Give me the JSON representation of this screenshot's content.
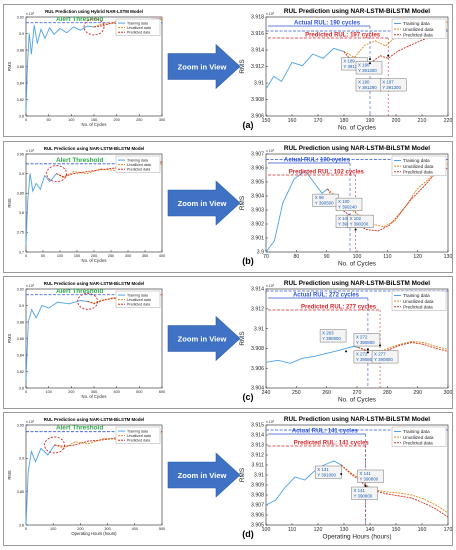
{
  "colors": {
    "training": "#4da3e6",
    "unutilized": "#e08a1e",
    "predicted": "#cc2f1e",
    "threshold": "#2f55d6",
    "alert_text": "#2da84a",
    "actual_rul_text": "#2f55d6",
    "predicted_rul_text": "#d8262a",
    "arrow": "#3f72c4",
    "circle": "#d62020",
    "tip_border": "#555555"
  },
  "zoom_label": "Zoom in View",
  "legend": [
    "Training data",
    "Unutilized data",
    "Predicted data"
  ],
  "panels": [
    {
      "label": "(a)",
      "left": {
        "title": "RUL Prediction using Hybrid NAR-LSTM Model",
        "xlabel": "No. of Cycles",
        "ylabel": "RMS",
        "exponent": "x 10³",
        "xticks": [
          "0",
          "50",
          "100",
          "150",
          "200",
          "250",
          "300"
        ],
        "yticks": [
          "3.8",
          "3.82",
          "3.84",
          "3.86",
          "3.88",
          "3.9",
          "3.92"
        ],
        "alert": "Alert Threshold"
      },
      "right": {
        "title": "RUL Prediction using NAR-LSTM-BiLSTM Model",
        "xlabel": "No. of Cycles",
        "ylabel": "RMS",
        "exponent": "x 10³",
        "xticks": [
          "150",
          "160",
          "170",
          "180",
          "190",
          "200",
          "210",
          "220"
        ],
        "yticks": [
          "3.906",
          "3.908",
          "3.91",
          "3.912",
          "3.914",
          "3.916",
          "3.918"
        ],
        "actual": "Actual RUL: 190 cycles",
        "predicted": "Predicted RUL: 197 cycles",
        "tips": [
          {
            "x": "X 189",
            "y": "Y 391300"
          },
          {
            "x": "X 190",
            "y": "Y 391290"
          },
          {
            "x": "X 190",
            "y": "Y 391300"
          },
          {
            "x": "X 197",
            "y": "Y 391300"
          }
        ]
      }
    },
    {
      "label": "(b)",
      "left": {
        "title": "RUL Prediction using NAR-LSTM-BiLSTM Model",
        "xlabel": "No. of Cycles",
        "ylabel": "RMS",
        "exponent": "x 10³",
        "xticks": [
          "0",
          "50",
          "100",
          "150",
          "200",
          "250",
          "300",
          "350",
          "400"
        ],
        "yticks": [
          "3.7",
          "3.75",
          "3.8",
          "3.85",
          "3.9",
          "3.95"
        ],
        "alert": "Alert Threshold"
      },
      "right": {
        "title": "RUL Prediction using NAR-LSTM-BiLSTM Model",
        "xlabel": "No. of Cycles",
        "ylabel": "RMS",
        "exponent": "x 10³",
        "xticks": [
          "70",
          "80",
          "90",
          "100",
          "110",
          "120",
          "130"
        ],
        "yticks": [
          "3.9",
          "3.901",
          "3.902",
          "3.903",
          "3.904",
          "3.905",
          "3.906",
          "3.907"
        ],
        "actual": "Actual RUL: 100 cycles",
        "predicted": "Predicted RUL: 102 cycles",
        "tips": [
          {
            "x": "X 96",
            "y": "Y 390500"
          },
          {
            "x": "X 100",
            "y": "Y 390500"
          },
          {
            "x": "X 100",
            "y": "Y 390240"
          },
          {
            "x": "X 102",
            "y": "Y 390200"
          }
        ]
      }
    },
    {
      "label": "(c)",
      "left": {
        "title": "RUL Prediction using NAR-LSTM-BiLSTM Model",
        "xlabel": "No. of Cycles",
        "ylabel": "RMS",
        "exponent": "x 10³",
        "xticks": [
          "0",
          "100",
          "200",
          "300",
          "400",
          "500",
          "600"
        ],
        "yticks": [
          "3.8",
          "3.82",
          "3.84",
          "3.86",
          "3.88",
          "3.9",
          "3.92"
        ],
        "alert": "Alert Threshold"
      },
      "right": {
        "title": "RUL Prediction using NAR-LSTM-BiLSTM Model",
        "xlabel": "No. of Cycles",
        "ylabel": "RMS",
        "exponent": "x 10³",
        "xticks": [
          "240",
          "250",
          "260",
          "270",
          "280",
          "290",
          "300"
        ],
        "yticks": [
          "3.904",
          "3.906",
          "3.908",
          "3.91",
          "3.912",
          "3.914"
        ],
        "actual": "Actual RUL: 272 cycles",
        "predicted": "Predicted RUL: 277 cycles",
        "tips": [
          {
            "x": "X 263",
            "y": "Y 390800"
          },
          {
            "x": "X 272",
            "y": "Y 390800"
          },
          {
            "x": "X 272",
            "y": "Y 390800"
          },
          {
            "x": "X 277",
            "y": "Y 390800"
          }
        ]
      }
    },
    {
      "label": "(d)",
      "left": {
        "title": "RUL Prediction using NAR-LSTM-BiLSTM Model",
        "xlabel": "Operating Hours (hours)",
        "ylabel": "RMS",
        "exponent": "x 10³",
        "xticks": [
          "0",
          "100",
          "200",
          "300",
          "400",
          "500"
        ],
        "yticks": [
          "3.8",
          "3.85",
          "3.9",
          "3.95"
        ],
        "alert": "Alert Threshold"
      },
      "right": {
        "title": "RUL Prediction using NAR-LSTM-BiLSTM Model",
        "xlabel": "Operating Hours (hours)",
        "ylabel": "RMS",
        "exponent": "x 10³",
        "xticks": [
          "100",
          "110",
          "120",
          "130",
          "140",
          "150",
          "160",
          "170"
        ],
        "yticks": [
          "3.905",
          "3.906",
          "3.907",
          "3.908",
          "3.909",
          "3.91",
          "3.911",
          "3.912",
          "3.913",
          "3.914",
          "3.915"
        ],
        "actual": "Actual RUL: 141 cycles",
        "predicted": "Predicted RUL: 141 cycles",
        "tips": [
          {
            "x": "X 131",
            "y": "Y 391000"
          },
          {
            "x": "X 141",
            "y": "Y 390800"
          },
          {
            "x": "X 141",
            "y": "Y 390800"
          }
        ]
      }
    }
  ],
  "chart_data": [
    {
      "type": "line",
      "title": "RUL Prediction using Hybrid NAR-LSTM Model",
      "xlabel": "No. of Cycles",
      "ylabel": "RMS",
      "xlim": [
        0,
        300
      ],
      "ylim": [
        3.8,
        3.92
      ],
      "threshold": 3.913,
      "series": [
        {
          "name": "Training data",
          "x": [
            0,
            3,
            7,
            12,
            18,
            25,
            33,
            42,
            52,
            62,
            75,
            90,
            105,
            120,
            135,
            150
          ],
          "y": [
            3.805,
            3.86,
            3.9,
            3.875,
            3.91,
            3.888,
            3.905,
            3.894,
            3.907,
            3.899,
            3.906,
            3.901,
            3.908,
            3.904,
            3.909,
            3.908
          ]
        },
        {
          "name": "Unutilized data",
          "x": [
            150,
            165,
            180,
            190,
            200,
            215,
            230,
            250,
            270,
            300
          ],
          "y": [
            3.908,
            3.911,
            3.913,
            3.912,
            3.915,
            3.913,
            3.916,
            3.914,
            3.917,
            3.917
          ]
        },
        {
          "name": "Predicted data",
          "x": [
            150,
            165,
            180,
            190,
            200,
            215,
            230,
            250,
            270,
            300
          ],
          "y": [
            3.908,
            3.909,
            3.911,
            3.913,
            3.912,
            3.915,
            3.914,
            3.916,
            3.917,
            3.918
          ]
        }
      ]
    },
    {
      "type": "line",
      "title": "RUL Prediction using NAR-LSTM-BiLSTM Model",
      "xlabel": "No. of Cycles",
      "ylabel": "RMS",
      "xlim": [
        150,
        220
      ],
      "ylim": [
        3.906,
        3.918
      ],
      "threshold": 3.9163,
      "series": [
        {
          "name": "Training data",
          "x": [
            150,
            153,
            156,
            160,
            164,
            168,
            172,
            176,
            180
          ],
          "y": [
            3.9093,
            3.9108,
            3.9102,
            3.9125,
            3.9121,
            3.9135,
            3.913,
            3.9142,
            3.9138
          ]
        },
        {
          "name": "Unutilized data",
          "x": [
            180,
            184,
            188,
            192,
            196,
            200,
            205,
            210,
            215,
            220
          ],
          "y": [
            3.9138,
            3.9131,
            3.9146,
            3.9151,
            3.9145,
            3.9156,
            3.9162,
            3.9168,
            3.9172,
            3.9174
          ]
        },
        {
          "name": "Predicted data",
          "x": [
            180,
            184,
            188,
            190,
            194,
            197,
            201,
            205,
            210,
            215,
            220
          ],
          "y": [
            3.9138,
            3.9122,
            3.9129,
            3.9124,
            3.9133,
            3.913,
            3.9139,
            3.9145,
            3.9152,
            3.9158,
            3.9166
          ]
        }
      ]
    },
    {
      "type": "line",
      "title": "RUL Prediction using NAR-LSTM-BiLSTM Model",
      "xlabel": "No. of Cycles",
      "ylabel": "RMS",
      "xlim": [
        0,
        400
      ],
      "ylim": [
        3.7,
        3.95
      ],
      "threshold": 3.925,
      "series": [
        {
          "name": "Training data",
          "x": [
            0,
            5,
            12,
            20,
            30,
            42,
            55,
            70,
            90
          ],
          "y": [
            3.72,
            3.83,
            3.9,
            3.855,
            3.875,
            3.86,
            3.895,
            3.88,
            3.9
          ]
        },
        {
          "name": "Unutilized data",
          "x": [
            90,
            110,
            140,
            180,
            220,
            260,
            300,
            350,
            400
          ],
          "y": [
            3.9,
            3.89,
            3.905,
            3.9,
            3.912,
            3.908,
            3.918,
            3.915,
            3.925
          ]
        },
        {
          "name": "Predicted data",
          "x": [
            90,
            110,
            140,
            180,
            220,
            260,
            300,
            350,
            400
          ],
          "y": [
            3.9,
            3.892,
            3.9,
            3.905,
            3.91,
            3.914,
            3.916,
            3.92,
            3.93
          ]
        }
      ]
    },
    {
      "type": "line",
      "title": "RUL Prediction using NAR-LSTM-BiLSTM Model",
      "xlabel": "No. of Cycles",
      "ylabel": "RMS",
      "xlim": [
        70,
        135
      ],
      "ylim": [
        3.9,
        3.907
      ],
      "threshold": 3.9066,
      "series": [
        {
          "name": "Training data",
          "x": [
            70,
            73,
            76,
            80,
            84,
            87,
            90,
            92
          ],
          "y": [
            3.9,
            3.9008,
            3.9035,
            3.9052,
            3.9058,
            3.905,
            3.9042,
            3.9045
          ]
        },
        {
          "name": "Unutilized data",
          "x": [
            92,
            96,
            100,
            104,
            108,
            112,
            116,
            120,
            124,
            128,
            132,
            135
          ],
          "y": [
            3.9045,
            3.9038,
            3.9031,
            3.9025,
            3.902,
            3.9018,
            3.9022,
            3.9033,
            3.9045,
            3.9052,
            3.906,
            3.9063
          ]
        },
        {
          "name": "Predicted data",
          "x": [
            92,
            96,
            100,
            102,
            106,
            110,
            114,
            118,
            122,
            126,
            130,
            135
          ],
          "y": [
            3.9045,
            3.9032,
            3.9026,
            3.902,
            3.9016,
            3.9015,
            3.9019,
            3.9028,
            3.9038,
            3.9046,
            3.9055,
            3.906
          ]
        }
      ]
    },
    {
      "type": "line",
      "title": "RUL Prediction using NAR-LSTM-BiLSTM Model",
      "xlabel": "No. of Cycles",
      "ylabel": "RMS",
      "xlim": [
        0,
        600
      ],
      "ylim": [
        3.8,
        3.92
      ],
      "threshold": 3.913,
      "series": [
        {
          "name": "Training data",
          "x": [
            0,
            10,
            25,
            45,
            70,
            100,
            140,
            190,
            240,
            272
          ],
          "y": [
            3.81,
            3.88,
            3.895,
            3.885,
            3.9,
            3.897,
            3.904,
            3.902,
            3.906,
            3.905
          ]
        },
        {
          "name": "Unutilized data",
          "x": [
            272,
            300,
            340,
            380,
            430,
            480,
            530,
            600
          ],
          "y": [
            3.905,
            3.903,
            3.907,
            3.908,
            3.909,
            3.91,
            3.912,
            3.913
          ]
        },
        {
          "name": "Predicted data",
          "x": [
            272,
            300,
            340,
            380,
            430,
            480,
            530,
            600
          ],
          "y": [
            3.905,
            3.902,
            3.906,
            3.909,
            3.91,
            3.911,
            3.912,
            3.913
          ]
        }
      ]
    },
    {
      "type": "line",
      "title": "RUL Prediction using NAR-LSTM-BiLSTM Model",
      "xlabel": "No. of Cycles",
      "ylabel": "RMS",
      "xlim": [
        230,
        305
      ],
      "ylim": [
        3.904,
        3.914
      ],
      "threshold": 3.9138,
      "series": [
        {
          "name": "Training data",
          "x": [
            230,
            235,
            240,
            245,
            250,
            255,
            260,
            263,
            266,
            268
          ],
          "y": [
            3.9066,
            3.9068,
            3.9065,
            3.907,
            3.9072,
            3.9075,
            3.9078,
            3.908,
            3.9082,
            3.9081
          ]
        },
        {
          "name": "Unutilized data",
          "x": [
            268,
            272,
            276,
            280,
            285,
            290,
            295,
            300,
            305
          ],
          "y": [
            3.9081,
            3.9078,
            3.9076,
            3.908,
            3.9084,
            3.9087,
            3.9086,
            3.9082,
            3.9079
          ]
        },
        {
          "name": "Predicted data",
          "x": [
            268,
            272,
            277,
            281,
            285,
            290,
            295,
            300,
            305
          ],
          "y": [
            3.9081,
            3.9077,
            3.9076,
            3.9079,
            3.9083,
            3.9086,
            3.9084,
            3.908,
            3.9077
          ]
        }
      ]
    },
    {
      "type": "line",
      "title": "RUL Prediction using NAR-LSTM-BiLSTM Model",
      "xlabel": "Operating Hours (hours)",
      "ylabel": "RMS",
      "xlim": [
        0,
        500
      ],
      "ylim": [
        3.8,
        3.95
      ],
      "threshold": 3.94,
      "series": [
        {
          "name": "Training data",
          "x": [
            0,
            8,
            20,
            35,
            55,
            80,
            105
          ],
          "y": [
            3.8,
            3.88,
            3.91,
            3.895,
            3.915,
            3.905,
            3.92
          ]
        },
        {
          "name": "Unutilized data",
          "x": [
            105,
            140,
            180,
            230,
            290,
            350,
            420,
            500
          ],
          "y": [
            3.92,
            3.915,
            3.925,
            3.922,
            3.93,
            3.928,
            3.935,
            3.938
          ]
        },
        {
          "name": "Predicted data",
          "x": [
            105,
            140,
            180,
            230,
            290,
            350,
            420,
            500
          ],
          "y": [
            3.92,
            3.918,
            3.92,
            3.926,
            3.928,
            3.932,
            3.934,
            3.94
          ]
        }
      ]
    },
    {
      "type": "line",
      "title": "RUL Prediction using NAR-LSTM-BiLSTM Model",
      "xlabel": "Operating Hours (hours)",
      "ylabel": "RMS",
      "xlim": [
        100,
        175
      ],
      "ylim": [
        3.905,
        3.915
      ],
      "threshold": 3.9145,
      "series": [
        {
          "name": "Training data",
          "x": [
            100,
            104,
            108,
            112,
            116,
            120,
            124,
            128,
            131
          ],
          "y": [
            3.907,
            3.9075,
            3.9088,
            3.9098,
            3.9095,
            3.9104,
            3.911,
            3.9114,
            3.911
          ]
        },
        {
          "name": "Unutilized data",
          "x": [
            131,
            135,
            139,
            141,
            145,
            150,
            155,
            160,
            165,
            170,
            175
          ],
          "y": [
            3.911,
            3.9102,
            3.9096,
            3.909,
            3.9085,
            3.9083,
            3.9082,
            3.908,
            3.9076,
            3.907,
            3.9062
          ]
        },
        {
          "name": "Predicted data",
          "x": [
            131,
            135,
            139,
            141,
            145,
            150,
            155,
            160,
            165,
            170,
            175
          ],
          "y": [
            3.911,
            3.9101,
            3.9094,
            3.9089,
            3.9084,
            3.9081,
            3.9079,
            3.9077,
            3.9072,
            3.9066,
            3.9058
          ]
        }
      ]
    }
  ]
}
